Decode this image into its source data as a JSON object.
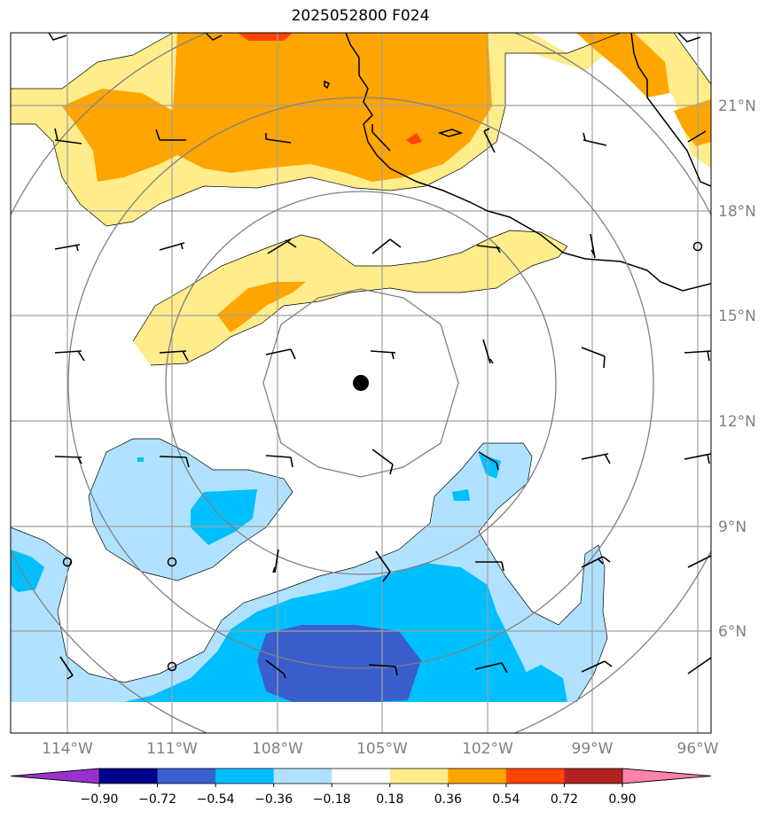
{
  "title": "2025052800 F024",
  "colors": {
    "frame": "#000000",
    "grid": "#a0a0a0",
    "coast": "#000000",
    "ring": "#808080",
    "barb": "#000000",
    "center_marker": "#000000"
  },
  "map": {
    "lon_labels": [
      "114°W",
      "111°W",
      "108°W",
      "105°W",
      "102°W",
      "99°W",
      "96°W"
    ],
    "lat_labels": [
      "21°N",
      "18°N",
      "15°N",
      "12°N",
      "9°N",
      "6°N"
    ],
    "center_marker": {
      "lon": -105.6,
      "lat": 13.1,
      "symbol": "filled-circle"
    },
    "rings": "concentric range rings around center marker",
    "wind_barbs": "grid of station wind barbs"
  },
  "colorbar": {
    "labels": [
      "−0.90",
      "−0.72",
      "−0.54",
      "−0.36",
      "−0.18",
      "0.18",
      "0.36",
      "0.54",
      "0.72",
      "0.90"
    ],
    "colors": [
      "#9932cc",
      "#00008b",
      "#3a5fcd",
      "#00bfff",
      "#b0e2ff",
      "#ffffff",
      "#ffec8b",
      "#ffa500",
      "#ff4500",
      "#b22222",
      "#ff82ab"
    ],
    "extend": "both"
  }
}
